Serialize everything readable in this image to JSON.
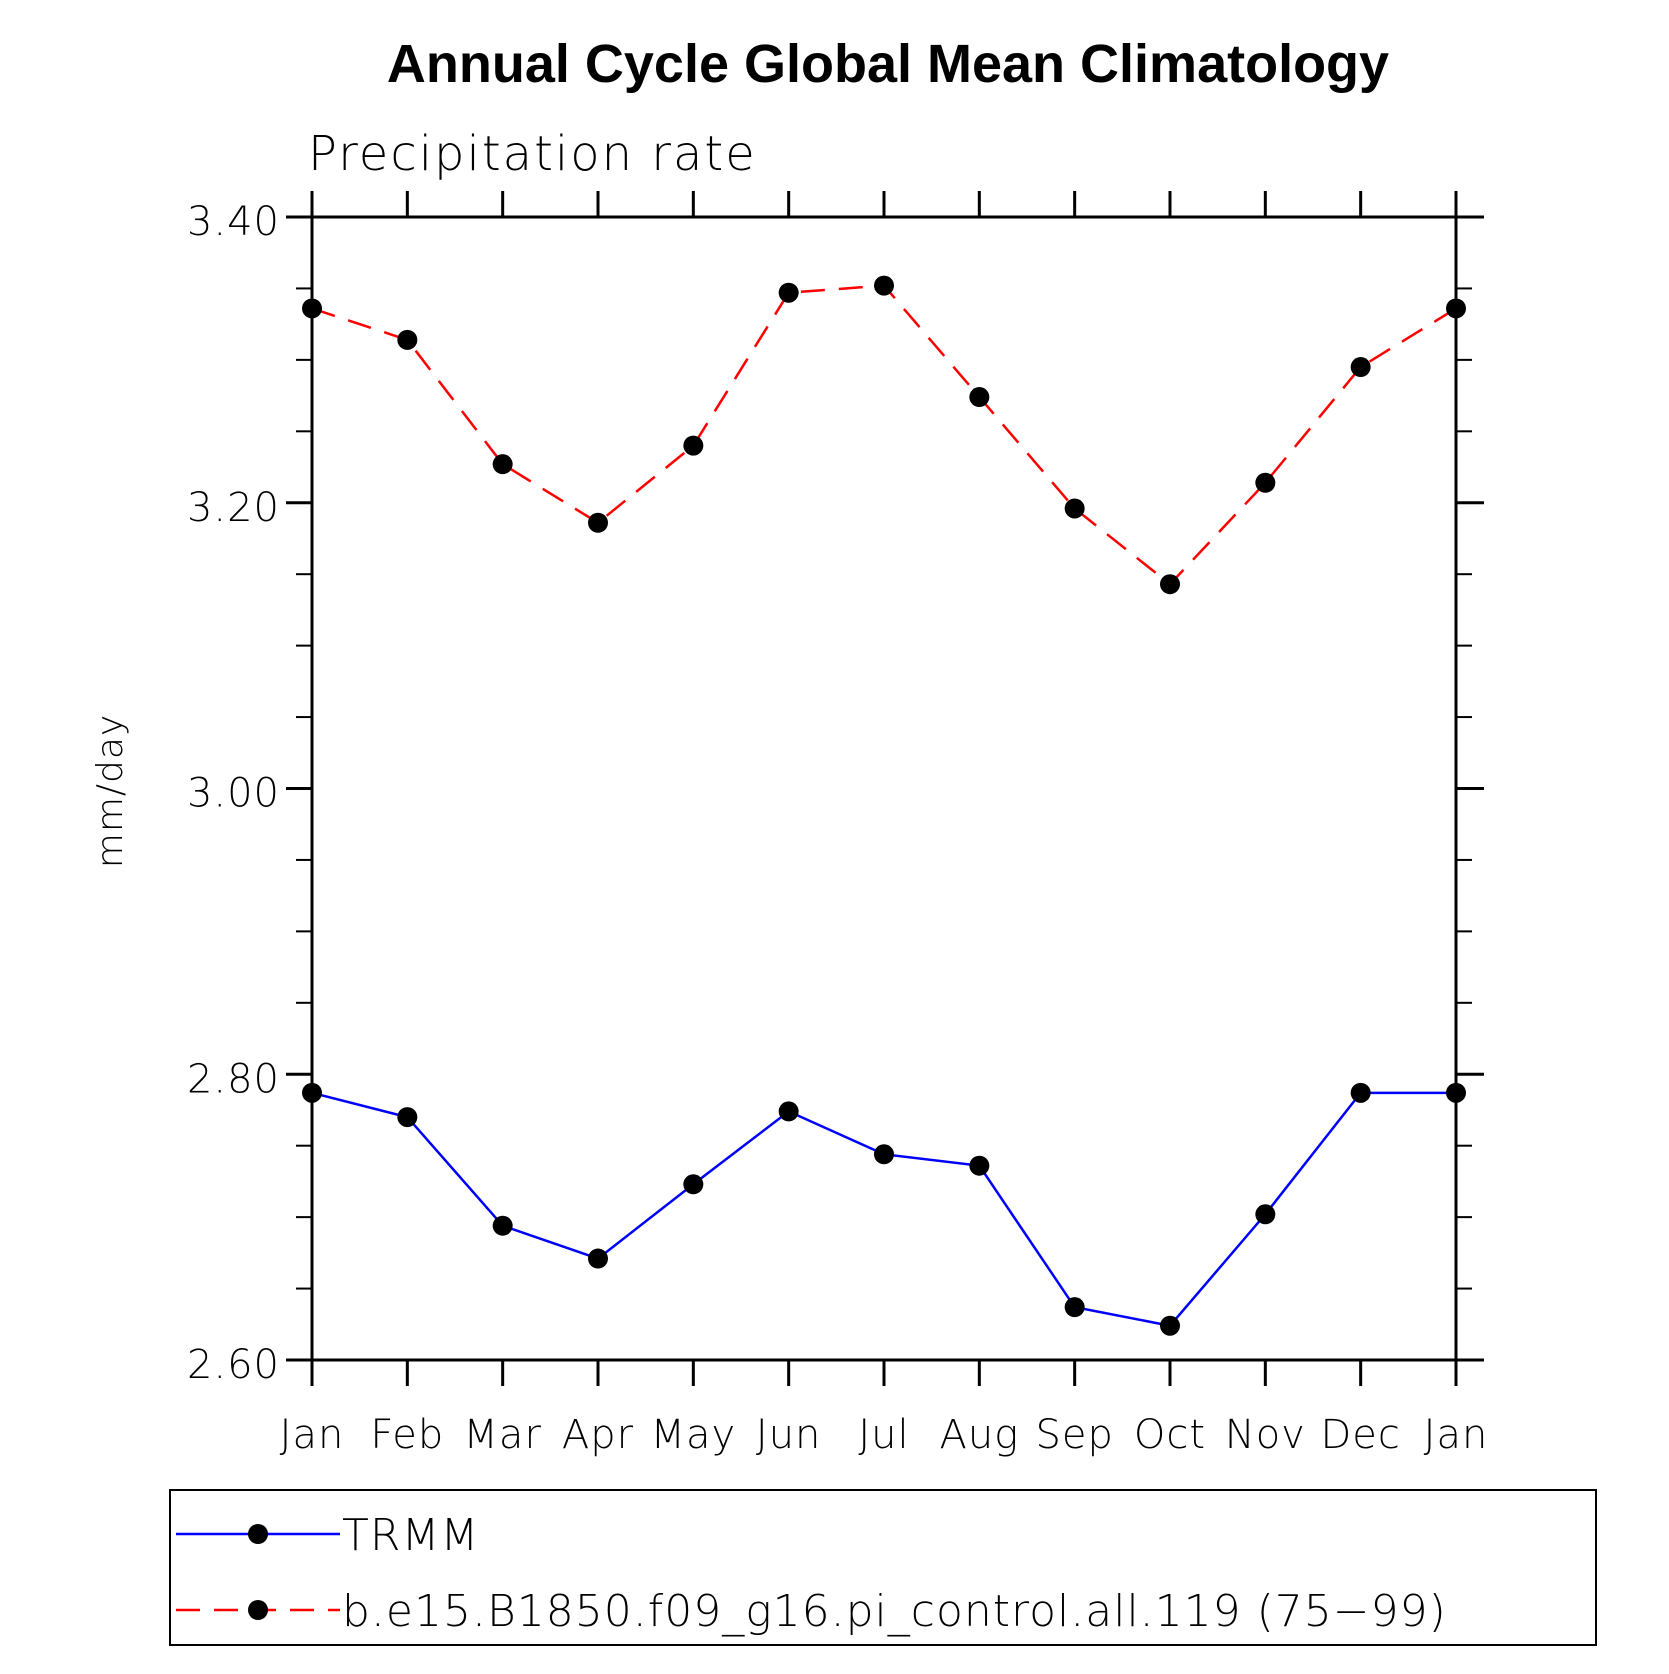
{
  "chart_data": {
    "type": "line",
    "title": "Annual Cycle Global Mean Climatology",
    "subtitle": "Precipitation rate",
    "ylabel": "mm/day",
    "xlabel": "",
    "categories": [
      "Jan",
      "Feb",
      "Mar",
      "Apr",
      "May",
      "Jun",
      "Jul",
      "Aug",
      "Sep",
      "Oct",
      "Nov",
      "Dec",
      "Jan"
    ],
    "ylim": [
      2.6,
      3.4
    ],
    "yticks": [
      "2.60",
      "2.80",
      "3.00",
      "3.20",
      "3.40"
    ],
    "yminor_step": 0.05,
    "grid": false,
    "legend_position": "bottom",
    "series": [
      {
        "name": "TRMM",
        "color": "#0000ff",
        "line_style": "solid",
        "marker": "filled-circle",
        "values": [
          2.787,
          2.77,
          2.694,
          2.671,
          2.723,
          2.774,
          2.744,
          2.736,
          2.637,
          2.624,
          2.702,
          2.787,
          2.787
        ]
      },
      {
        "name": "b.e15.B1850.f09_g16.pi_control.all.119 (75−99)",
        "color": "#ff0000",
        "line_style": "dashed",
        "marker": "filled-circle",
        "values": [
          3.336,
          3.314,
          3.227,
          3.186,
          3.24,
          3.347,
          3.352,
          3.274,
          3.196,
          3.143,
          3.214,
          3.295,
          3.336
        ]
      }
    ]
  }
}
